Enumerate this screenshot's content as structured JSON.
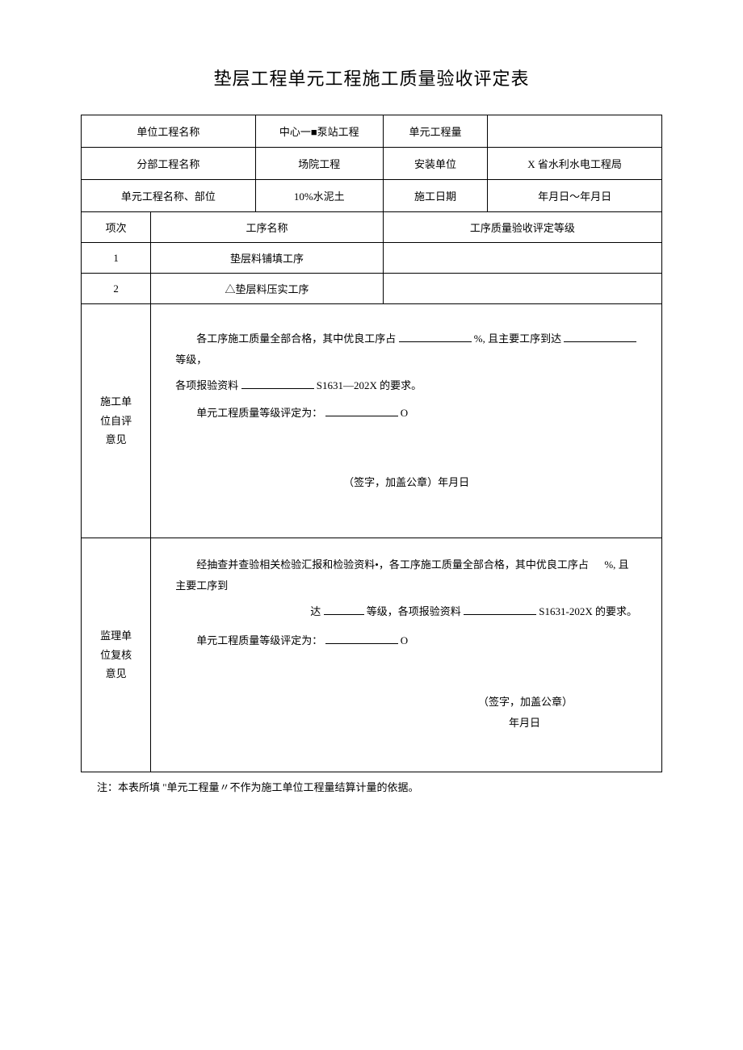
{
  "title": "垫层工程单元工程施工质量验收评定表",
  "header_rows": [
    {
      "label": "单位工程名称",
      "val1": "中心一■泵站工程",
      "label2": "单元工程量",
      "val2": ""
    },
    {
      "label": "分部工程名称",
      "val1": "场院工程",
      "label2": "安装单位",
      "val2": "X 省水利水电工程局"
    },
    {
      "label": "单元工程名称、部位",
      "val1": "10%水泥土",
      "label2": "施工日期",
      "val2": "年月日～年月日"
    }
  ],
  "gx_header": {
    "c1": "项次",
    "c2": "工序名称",
    "c3": "工序质量验收评定等级"
  },
  "gx_rows": [
    {
      "no": "1",
      "name": "垫层料铺填工序",
      "grade": ""
    },
    {
      "no": "2",
      "name": "△垫层料压实工序",
      "grade": ""
    }
  ],
  "self_label": "施工单\n位自评\n意见",
  "self_opinion": {
    "p1_a": "各工序施工质量全部合格，其中优良工序占",
    "p1_b": "%, 且主要工序到达",
    "p1_c": "等级，",
    "p2_a": "各项报验资料",
    "p2_b": "S1631—202X 的要求。",
    "p3_a": "单元工程质量等级评定为：",
    "p3_b": "O",
    "sign": "（签字，加盖公章）年月日"
  },
  "review_label": "监理单\n位复核\n意见",
  "review_opinion": {
    "p1_a": "经抽查并查验相关检验汇报和检验资料•，各工序施工质量全部合格，其中优良工序占",
    "p1_b": "%, 且主要工序到",
    "p2_a": "达",
    "p2_b": "等级，各项报验资料",
    "p2_c": "S1631-202X 的要求。",
    "p3_a": "单元工程质量等级评定为：",
    "p3_b": "O",
    "sign": "（签字，加盖公章）",
    "date": "年月日"
  },
  "footnote": "注：本表所填 \"单元工程量〃不作为施工单位工程量结算计量的依据。",
  "colors": {
    "bg": "#ffffff",
    "text": "#000000",
    "border": "#000000"
  },
  "font": {
    "title_size": 22,
    "body_size": 13
  },
  "table": {
    "col_widths_pct": [
      12,
      18,
      22,
      18,
      30
    ]
  }
}
